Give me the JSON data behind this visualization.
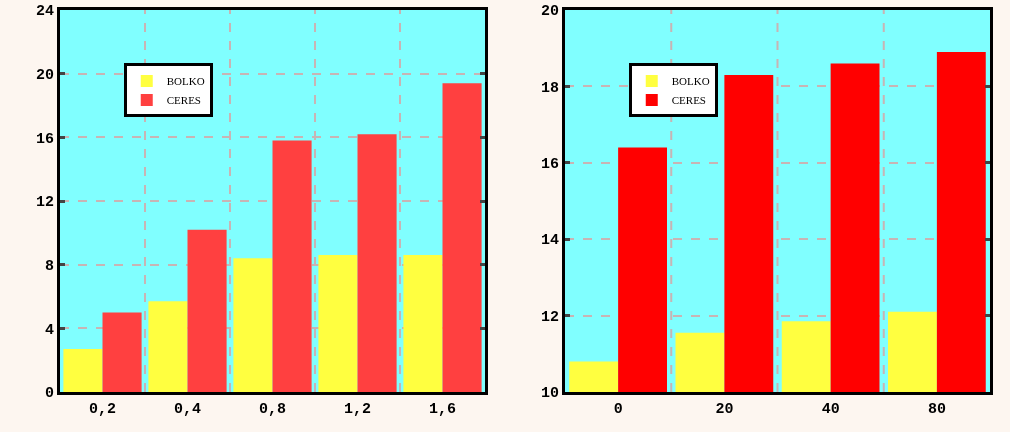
{
  "chart_data": [
    {
      "type": "bar",
      "categories": [
        "0,2",
        "0,4",
        "0,8",
        "1,2",
        "1,6"
      ],
      "series": [
        {
          "name": "BOLKO",
          "color": "#ffff40",
          "values": [
            2.7,
            5.7,
            8.4,
            8.6,
            8.6
          ]
        },
        {
          "name": "CERES",
          "color": "#ff4040",
          "values": [
            5.0,
            10.2,
            15.8,
            16.2,
            19.4
          ]
        }
      ],
      "ylim": [
        0,
        24
      ],
      "yticks": [
        0,
        4,
        8,
        12,
        16,
        20,
        24
      ],
      "grid": true,
      "legend": "top left"
    },
    {
      "type": "bar",
      "categories": [
        "0",
        "20",
        "40",
        "80"
      ],
      "series": [
        {
          "name": "BOLKO",
          "color": "#ffff40",
          "values": [
            10.8,
            11.55,
            11.85,
            12.1
          ]
        },
        {
          "name": "CERES",
          "color": "#ff0000",
          "values": [
            16.4,
            18.3,
            18.6,
            18.9
          ]
        }
      ],
      "ylim": [
        10,
        20
      ],
      "yticks": [
        10,
        12,
        14,
        16,
        18,
        20
      ],
      "grid": true,
      "legend": "top left"
    }
  ]
}
